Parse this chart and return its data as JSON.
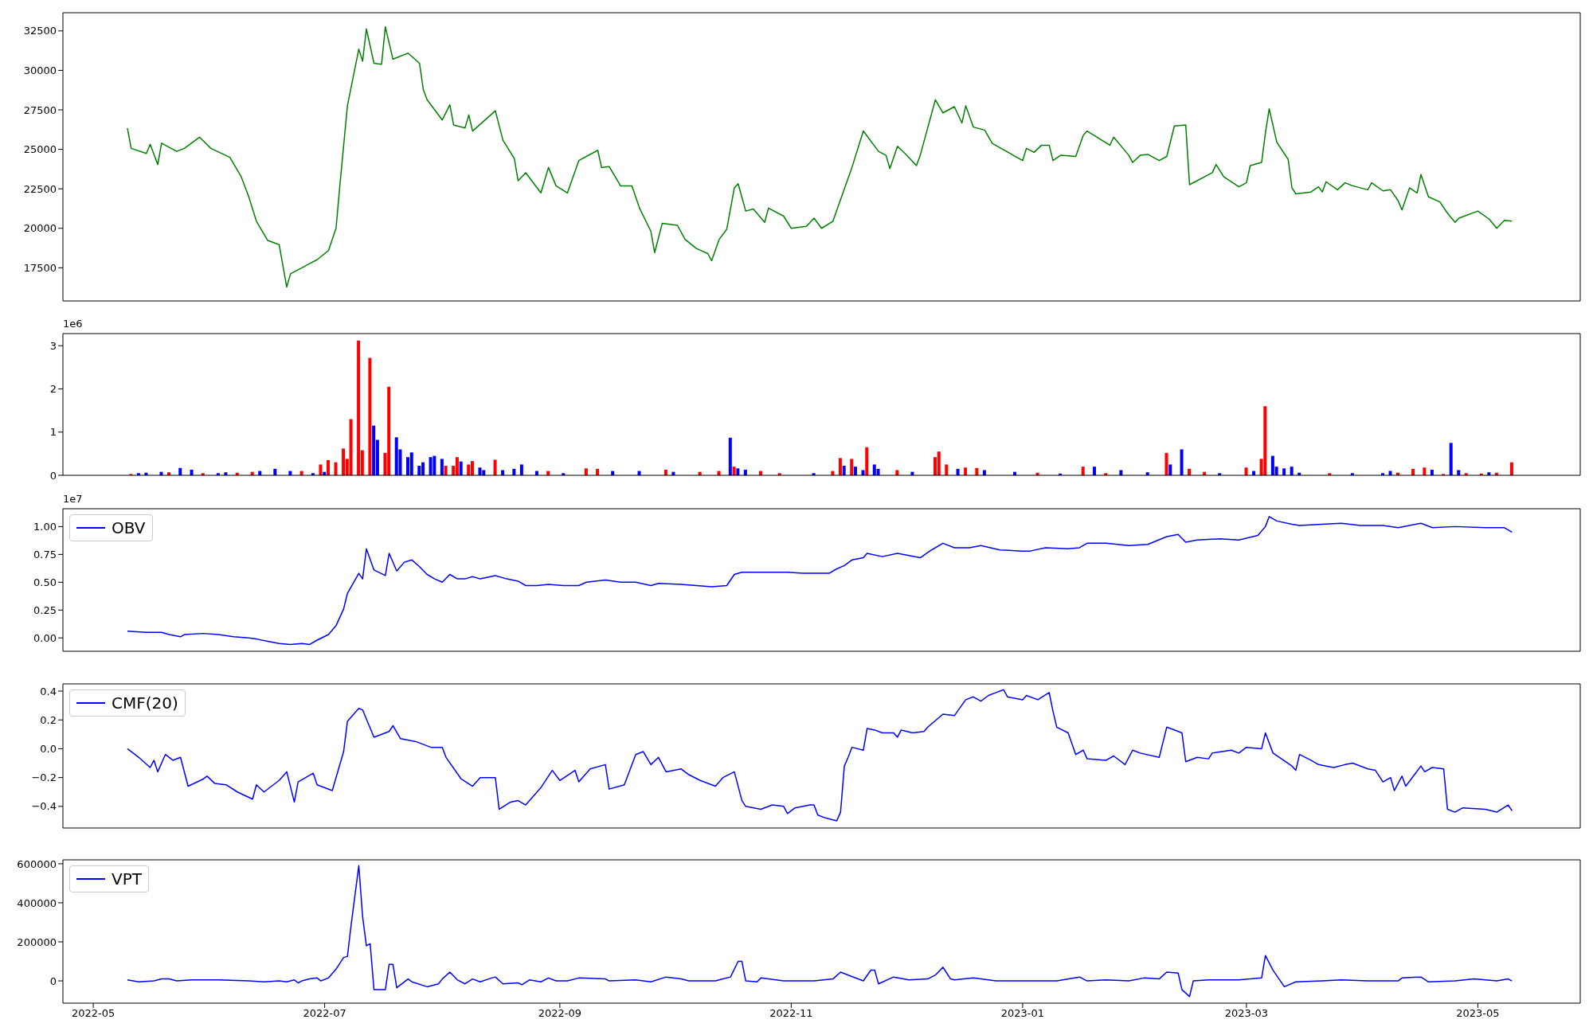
{
  "chart_data": [
    {
      "type": "line",
      "color": "#008000",
      "xlim": [
        "2022-04-23",
        "2023-05-28"
      ],
      "ylim": [
        15400,
        33650
      ],
      "yticks": [
        17500,
        20000,
        22500,
        25000,
        27500,
        30000,
        32500
      ],
      "tick_labels": "y",
      "x": [
        "2022-05-10",
        "2022-05-11",
        "2022-05-15",
        "2022-05-16",
        "2022-05-18",
        "2022-05-19",
        "2022-05-23",
        "2022-05-25",
        "2022-05-29",
        "2022-06-01",
        "2022-06-06",
        "2022-06-09",
        "2022-06-11",
        "2022-06-13",
        "2022-06-16",
        "2022-06-19",
        "2022-06-21",
        "2022-06-22",
        "2022-06-25",
        "2022-06-27",
        "2022-06-29",
        "2022-07-02",
        "2022-07-04",
        "2022-07-05",
        "2022-07-07",
        "2022-07-10",
        "2022-07-11",
        "2022-07-12",
        "2022-07-14",
        "2022-07-16",
        "2022-07-17",
        "2022-07-19",
        "2022-07-23",
        "2022-07-26",
        "2022-07-27",
        "2022-07-28",
        "2022-08-01",
        "2022-08-03",
        "2022-08-04",
        "2022-08-07",
        "2022-08-08",
        "2022-08-09",
        "2022-08-15",
        "2022-08-17",
        "2022-08-20",
        "2022-08-21",
        "2022-08-23",
        "2022-08-27",
        "2022-08-29",
        "2022-08-31",
        "2022-09-03",
        "2022-09-06",
        "2022-09-11",
        "2022-09-12",
        "2022-09-14",
        "2022-09-17",
        "2022-09-20",
        "2022-09-22",
        "2022-09-25",
        "2022-09-26",
        "2022-09-28",
        "2022-10-02",
        "2022-10-04",
        "2022-10-07",
        "2022-10-10",
        "2022-10-11",
        "2022-10-13",
        "2022-10-15",
        "2022-10-17",
        "2022-10-18",
        "2022-10-20",
        "2022-10-22",
        "2022-10-25",
        "2022-10-26",
        "2022-10-30",
        "2022-11-01",
        "2022-11-05",
        "2022-11-07",
        "2022-11-09",
        "2022-11-12",
        "2022-11-15",
        "2022-11-17",
        "2022-11-20",
        "2022-11-24",
        "2022-11-26",
        "2022-11-27",
        "2022-11-29",
        "2022-12-01",
        "2022-12-04",
        "2022-12-05",
        "2022-12-09",
        "2022-12-11",
        "2022-12-14",
        "2022-12-16",
        "2022-12-17",
        "2022-12-19",
        "2022-12-22",
        "2022-12-24",
        "2023-01-01",
        "2023-01-02",
        "2023-01-04",
        "2023-01-06",
        "2023-01-08",
        "2023-01-09",
        "2023-01-11",
        "2023-01-15",
        "2023-01-17",
        "2023-01-18",
        "2023-01-24",
        "2023-01-25",
        "2023-01-29",
        "2023-01-30",
        "2023-02-01",
        "2023-02-03",
        "2023-02-06",
        "2023-02-08",
        "2023-02-10",
        "2023-02-13",
        "2023-02-14",
        "2023-02-20",
        "2023-02-21",
        "2023-02-23",
        "2023-02-27",
        "2023-03-01",
        "2023-03-02",
        "2023-03-05",
        "2023-03-06",
        "2023-03-07",
        "2023-03-09",
        "2023-03-12",
        "2023-03-13",
        "2023-03-14",
        "2023-03-18",
        "2023-03-20",
        "2023-03-21",
        "2023-03-22",
        "2023-03-25",
        "2023-03-27",
        "2023-03-29",
        "2023-04-02",
        "2023-04-03",
        "2023-04-06",
        "2023-04-08",
        "2023-04-10",
        "2023-04-11",
        "2023-04-13",
        "2023-04-15",
        "2023-04-16",
        "2023-04-18",
        "2023-04-21",
        "2023-04-23",
        "2023-04-25",
        "2023-04-26",
        "2023-05-01",
        "2023-05-04",
        "2023-05-06",
        "2023-05-08",
        "2023-05-10"
      ],
      "values": [
        26350,
        25060,
        24740,
        25320,
        24040,
        25390,
        24870,
        25060,
        25770,
        25060,
        24490,
        23270,
        21990,
        20450,
        19230,
        18970,
        16280,
        17120,
        17500,
        17760,
        18010,
        18590,
        20000,
        22690,
        27760,
        31350,
        30580,
        32630,
        30450,
        30390,
        32760,
        30710,
        31090,
        30450,
        28780,
        28140,
        26860,
        27820,
        26540,
        26350,
        27180,
        26160,
        27440,
        25580,
        24420,
        23010,
        23520,
        22240,
        23850,
        22690,
        22240,
        24290,
        24940,
        23850,
        23910,
        22690,
        22690,
        21280,
        19810,
        18460,
        20320,
        20190,
        19300,
        18720,
        18400,
        17950,
        19300,
        19940,
        22560,
        22820,
        21090,
        21220,
        20380,
        21280,
        20770,
        20000,
        20130,
        20640,
        20000,
        20450,
        22500,
        23850,
        26160,
        24870,
        24620,
        23780,
        25190,
        24740,
        23970,
        24620,
        28140,
        27310,
        27700,
        26670,
        27760,
        26410,
        26220,
        25380,
        24290,
        25060,
        24810,
        25260,
        25260,
        24290,
        24620,
        24550,
        25900,
        26160,
        25260,
        25770,
        24620,
        24170,
        24620,
        24680,
        24290,
        24550,
        26480,
        26540,
        22760,
        23520,
        24040,
        23270,
        22630,
        22880,
        23970,
        24170,
        26030,
        27570,
        25450,
        24360,
        22560,
        22180,
        22300,
        22630,
        22300,
        22950,
        22440,
        22880,
        22690,
        22440,
        22880,
        22370,
        22440,
        21740,
        21160,
        22560,
        22240,
        23400,
        21990,
        21670,
        20960,
        20380,
        20640,
        21090,
        20580,
        20000,
        20510,
        20450
      ]
    },
    {
      "type": "bar",
      "xlim": [
        "2022-04-23",
        "2023-05-28"
      ],
      "ylim": [
        0,
        3.28
      ],
      "yticks": [
        0,
        1,
        2,
        3
      ],
      "tick_labels": "y",
      "annotations": [
        "1e6"
      ],
      "x": [
        "2022-05-11",
        "2022-05-13",
        "2022-05-15",
        "2022-05-19",
        "2022-05-21",
        "2022-05-24",
        "2022-05-27",
        "2022-05-30",
        "2022-06-03",
        "2022-06-05",
        "2022-06-08",
        "2022-06-12",
        "2022-06-14",
        "2022-06-18",
        "2022-06-22",
        "2022-06-25",
        "2022-06-28",
        "2022-06-30",
        "2022-07-01",
        "2022-07-02",
        "2022-07-04",
        "2022-07-06",
        "2022-07-07",
        "2022-07-08",
        "2022-07-10",
        "2022-07-11",
        "2022-07-13",
        "2022-07-14",
        "2022-07-15",
        "2022-07-17",
        "2022-07-18",
        "2022-07-20",
        "2022-07-21",
        "2022-07-23",
        "2022-07-24",
        "2022-07-26",
        "2022-07-27",
        "2022-07-29",
        "2022-07-30",
        "2022-08-01",
        "2022-08-02",
        "2022-08-04",
        "2022-08-05",
        "2022-08-06",
        "2022-08-08",
        "2022-08-09",
        "2022-08-11",
        "2022-08-12",
        "2022-08-15",
        "2022-08-17",
        "2022-08-20",
        "2022-08-22",
        "2022-08-26",
        "2022-08-29",
        "2022-09-02",
        "2022-09-08",
        "2022-09-11",
        "2022-09-15",
        "2022-09-22",
        "2022-09-29",
        "2022-10-01",
        "2022-10-08",
        "2022-10-13",
        "2022-10-16",
        "2022-10-17",
        "2022-10-18",
        "2022-10-20",
        "2022-10-24",
        "2022-10-29",
        "2022-11-07",
        "2022-11-12",
        "2022-11-14",
        "2022-11-15",
        "2022-11-17",
        "2022-11-18",
        "2022-11-20",
        "2022-11-21",
        "2022-11-23",
        "2022-11-24",
        "2022-11-29",
        "2022-12-03",
        "2022-12-09",
        "2022-12-10",
        "2022-12-12",
        "2022-12-15",
        "2022-12-17",
        "2022-12-20",
        "2022-12-22",
        "2022-12-30",
        "2023-01-05",
        "2023-01-11",
        "2023-01-17",
        "2023-01-20",
        "2023-01-23",
        "2023-01-27",
        "2023-02-03",
        "2023-02-08",
        "2023-02-09",
        "2023-02-12",
        "2023-02-14",
        "2023-02-18",
        "2023-02-22",
        "2023-03-01",
        "2023-03-03",
        "2023-03-05",
        "2023-03-06",
        "2023-03-08",
        "2023-03-09",
        "2023-03-11",
        "2023-03-13",
        "2023-03-15",
        "2023-03-23",
        "2023-03-29",
        "2023-04-06",
        "2023-04-08",
        "2023-04-10",
        "2023-04-14",
        "2023-04-17",
        "2023-04-19",
        "2023-04-22",
        "2023-04-24",
        "2023-04-26",
        "2023-04-28",
        "2023-05-02",
        "2023-05-04",
        "2023-05-06",
        "2023-05-10"
      ],
      "values": [
        0.03,
        0.05,
        0.06,
        0.08,
        0.07,
        0.17,
        0.13,
        0.05,
        0.05,
        0.07,
        0.06,
        0.08,
        0.1,
        0.15,
        0.1,
        0.1,
        0.05,
        0.25,
        0.08,
        0.35,
        0.3,
        0.62,
        0.38,
        1.3,
        3.12,
        0.58,
        2.72,
        1.15,
        0.82,
        0.52,
        2.05,
        0.88,
        0.6,
        0.42,
        0.53,
        0.22,
        0.3,
        0.42,
        0.45,
        0.38,
        0.22,
        0.22,
        0.42,
        0.32,
        0.25,
        0.33,
        0.18,
        0.12,
        0.36,
        0.12,
        0.15,
        0.25,
        0.1,
        0.1,
        0.05,
        0.16,
        0.15,
        0.1,
        0.1,
        0.13,
        0.08,
        0.08,
        0.1,
        0.87,
        0.2,
        0.16,
        0.13,
        0.1,
        0.05,
        0.05,
        0.1,
        0.4,
        0.22,
        0.38,
        0.2,
        0.12,
        0.65,
        0.25,
        0.15,
        0.12,
        0.08,
        0.42,
        0.55,
        0.25,
        0.15,
        0.18,
        0.17,
        0.12,
        0.08,
        0.06,
        0.04,
        0.2,
        0.2,
        0.05,
        0.12,
        0.07,
        0.52,
        0.25,
        0.6,
        0.15,
        0.08,
        0.05,
        0.18,
        0.1,
        0.38,
        1.6,
        0.45,
        0.2,
        0.16,
        0.2,
        0.06,
        0.05,
        0.05,
        0.05,
        0.1,
        0.06,
        0.15,
        0.18,
        0.13,
        0.03,
        0.75,
        0.12,
        0.05,
        0.04,
        0.07,
        0.06,
        0.3
      ],
      "colors": [
        "#ff0000",
        "#0000ff",
        "#0000ff",
        "#0000ff",
        "#ff0000",
        "#0000ff",
        "#0000ff",
        "#ff0000",
        "#0000ff",
        "#0000ff",
        "#ff0000",
        "#ff0000",
        "#0000ff",
        "#0000ff",
        "#0000ff",
        "#ff0000",
        "#0000ff",
        "#ff0000",
        "#0000ff",
        "#ff0000",
        "#ff0000",
        "#ff0000",
        "#ff0000",
        "#ff0000",
        "#ff0000",
        "#ff0000",
        "#ff0000",
        "#0000ff",
        "#0000ff",
        "#ff0000",
        "#ff0000",
        "#0000ff",
        "#0000ff",
        "#0000ff",
        "#0000ff",
        "#0000ff",
        "#0000ff",
        "#0000ff",
        "#0000ff",
        "#0000ff",
        "#ff0000",
        "#ff0000",
        "#ff0000",
        "#0000ff",
        "#ff0000",
        "#ff0000",
        "#0000ff",
        "#0000ff",
        "#ff0000",
        "#0000ff",
        "#0000ff",
        "#0000ff",
        "#0000ff",
        "#ff0000",
        "#0000ff",
        "#ff0000",
        "#ff0000",
        "#0000ff",
        "#0000ff",
        "#ff0000",
        "#0000ff",
        "#ff0000",
        "#ff0000",
        "#0000ff",
        "#ff0000",
        "#0000ff",
        "#0000ff",
        "#ff0000",
        "#ff0000",
        "#0000ff",
        "#ff0000",
        "#ff0000",
        "#0000ff",
        "#ff0000",
        "#0000ff",
        "#0000ff",
        "#ff0000",
        "#0000ff",
        "#0000ff",
        "#ff0000",
        "#0000ff",
        "#ff0000",
        "#ff0000",
        "#ff0000",
        "#0000ff",
        "#ff0000",
        "#ff0000",
        "#0000ff",
        "#0000ff",
        "#ff0000",
        "#0000ff",
        "#ff0000",
        "#0000ff",
        "#ff0000",
        "#0000ff",
        "#0000ff",
        "#ff0000",
        "#0000ff",
        "#0000ff",
        "#ff0000",
        "#ff0000",
        "#0000ff",
        "#ff0000",
        "#0000ff",
        "#ff0000",
        "#ff0000",
        "#0000ff",
        "#0000ff",
        "#0000ff",
        "#0000ff",
        "#0000ff",
        "#ff0000",
        "#0000ff",
        "#0000ff",
        "#0000ff",
        "#ff0000",
        "#ff0000",
        "#ff0000",
        "#0000ff",
        "#ff0000",
        "#0000ff",
        "#0000ff",
        "#ff0000",
        "#ff0000",
        "#0000ff",
        "#ff0000",
        "#ff0000"
      ]
    },
    {
      "type": "line",
      "xlim": [
        "2022-04-23",
        "2023-05-28"
      ],
      "ylim": [
        -0.12,
        1.16
      ],
      "yticks": [
        {
          "value": 0,
          "label": "0.00"
        },
        {
          "value": 0.25,
          "label": "0.25"
        },
        {
          "value": 0.5,
          "label": "0.50"
        },
        {
          "value": 0.75,
          "label": "0.75"
        },
        {
          "value": 1,
          "label": "1.00"
        }
      ],
      "tick_labels": "y",
      "legend": "top left",
      "annotations": [
        "1e7"
      ],
      "x": [
        "2022-05-10",
        "2022-05-15",
        "2022-05-19",
        "2022-05-21",
        "2022-05-24",
        "2022-05-25",
        "2022-05-30",
        "2022-06-03",
        "2022-06-07",
        "2022-06-11",
        "2022-06-13",
        "2022-06-16",
        "2022-06-19",
        "2022-06-22",
        "2022-06-25",
        "2022-06-27",
        "2022-06-29",
        "2022-07-02",
        "2022-07-04",
        "2022-07-06",
        "2022-07-07",
        "2022-07-10",
        "2022-07-11",
        "2022-07-12",
        "2022-07-14",
        "2022-07-17",
        "2022-07-18",
        "2022-07-20",
        "2022-07-22",
        "2022-07-24",
        "2022-07-26",
        "2022-07-28",
        "2022-07-30",
        "2022-08-01",
        "2022-08-03",
        "2022-08-05",
        "2022-08-07",
        "2022-08-09",
        "2022-08-11",
        "2022-08-15",
        "2022-08-18",
        "2022-08-21",
        "2022-08-23",
        "2022-08-26",
        "2022-08-29",
        "2022-09-02",
        "2022-09-06",
        "2022-09-08",
        "2022-09-13",
        "2022-09-17",
        "2022-09-21",
        "2022-09-25",
        "2022-09-27",
        "2022-10-03",
        "2022-10-07",
        "2022-10-11",
        "2022-10-15",
        "2022-10-17",
        "2022-10-19",
        "2022-10-23",
        "2022-10-27",
        "2022-10-31",
        "2022-11-04",
        "2022-11-11",
        "2022-11-13",
        "2022-11-15",
        "2022-11-17",
        "2022-11-20",
        "2022-11-21",
        "2022-11-25",
        "2022-11-29",
        "2022-12-05",
        "2022-12-08",
        "2022-12-11",
        "2022-12-14",
        "2022-12-18",
        "2022-12-21",
        "2022-12-26",
        "2023-01-01",
        "2023-01-03",
        "2023-01-07",
        "2023-01-13",
        "2023-01-16",
        "2023-01-18",
        "2023-01-23",
        "2023-01-29",
        "2023-02-03",
        "2023-02-08",
        "2023-02-11",
        "2023-02-13",
        "2023-02-16",
        "2023-02-22",
        "2023-02-27",
        "2023-03-04",
        "2023-03-06",
        "2023-03-07",
        "2023-03-09",
        "2023-03-13",
        "2023-03-15",
        "2023-03-21",
        "2023-03-26",
        "2023-03-31",
        "2023-04-06",
        "2023-04-10",
        "2023-04-16",
        "2023-04-19",
        "2023-04-25",
        "2023-05-03",
        "2023-05-08",
        "2023-05-10"
      ],
      "series": [
        {
          "name": "OBV",
          "color": "#0000ff",
          "values": [
            0.06,
            0.05,
            0.05,
            0.03,
            0.01,
            0.03,
            0.04,
            0.03,
            0.01,
            0,
            -0.01,
            -0.03,
            -0.05,
            -0.06,
            -0.05,
            -0.06,
            -0.02,
            0.03,
            0.11,
            0.26,
            0.4,
            0.58,
            0.53,
            0.8,
            0.61,
            0.56,
            0.76,
            0.6,
            0.68,
            0.7,
            0.64,
            0.57,
            0.53,
            0.5,
            0.57,
            0.53,
            0.53,
            0.55,
            0.53,
            0.56,
            0.53,
            0.51,
            0.47,
            0.47,
            0.48,
            0.47,
            0.47,
            0.5,
            0.52,
            0.5,
            0.5,
            0.47,
            0.49,
            0.48,
            0.47,
            0.46,
            0.47,
            0.57,
            0.59,
            0.59,
            0.59,
            0.59,
            0.58,
            0.58,
            0.62,
            0.65,
            0.7,
            0.72,
            0.76,
            0.73,
            0.76,
            0.72,
            0.79,
            0.85,
            0.81,
            0.81,
            0.83,
            0.79,
            0.78,
            0.78,
            0.81,
            0.8,
            0.81,
            0.85,
            0.85,
            0.83,
            0.84,
            0.91,
            0.93,
            0.86,
            0.88,
            0.89,
            0.88,
            0.92,
            1.0,
            1.09,
            1.05,
            1.02,
            1.01,
            1.02,
            1.03,
            1.01,
            1.01,
            0.99,
            1.03,
            0.99,
            1.0,
            0.99,
            0.99,
            0.95
          ]
        }
      ]
    },
    {
      "type": "line",
      "xlim": [
        "2022-04-23",
        "2023-05-28"
      ],
      "ylim": [
        -0.55,
        0.45
      ],
      "yticks": [
        {
          "value": -0.4,
          "label": "−0.4"
        },
        {
          "value": -0.2,
          "label": "−0.2"
        },
        {
          "value": 0,
          "label": "0.0"
        },
        0.2,
        0.4
      ],
      "tick_labels": "y",
      "legend": "top left",
      "x": [
        "2022-05-10",
        "2022-05-12",
        "2022-05-13",
        "2022-05-16",
        "2022-05-17",
        "2022-05-18",
        "2022-05-20",
        "2022-05-22",
        "2022-05-24",
        "2022-05-26",
        "2022-05-30",
        "2022-05-31",
        "2022-06-02",
        "2022-06-05",
        "2022-06-08",
        "2022-06-12",
        "2022-06-13",
        "2022-06-15",
        "2022-06-19",
        "2022-06-21",
        "2022-06-23",
        "2022-06-24",
        "2022-06-28",
        "2022-06-29",
        "2022-07-03",
        "2022-07-06",
        "2022-07-07",
        "2022-07-10",
        "2022-07-11",
        "2022-07-14",
        "2022-07-18",
        "2022-07-19",
        "2022-07-21",
        "2022-07-25",
        "2022-07-29",
        "2022-08-01",
        "2022-08-02",
        "2022-08-06",
        "2022-08-09",
        "2022-08-11",
        "2022-08-15",
        "2022-08-16",
        "2022-08-19",
        "2022-08-21",
        "2022-08-23",
        "2022-08-27",
        "2022-08-30",
        "2022-09-01",
        "2022-09-05",
        "2022-09-06",
        "2022-09-09",
        "2022-09-13",
        "2022-09-14",
        "2022-09-18",
        "2022-09-21",
        "2022-09-23",
        "2022-09-25",
        "2022-09-27",
        "2022-09-29",
        "2022-10-03",
        "2022-10-05",
        "2022-10-08",
        "2022-10-12",
        "2022-10-14",
        "2022-10-17",
        "2022-10-19",
        "2022-10-20",
        "2022-10-24",
        "2022-10-27",
        "2022-10-30",
        "2022-10-31",
        "2022-11-02",
        "2022-11-06",
        "2022-11-07",
        "2022-11-08",
        "2022-11-10",
        "2022-11-13",
        "2022-11-14",
        "2022-11-15",
        "2022-11-16",
        "2022-11-17",
        "2022-11-20",
        "2022-11-21",
        "2022-11-23",
        "2022-11-25",
        "2022-11-28",
        "2022-11-29",
        "2022-11-30",
        "2022-12-03",
        "2022-12-06",
        "2022-12-07",
        "2022-12-11",
        "2022-12-14",
        "2022-12-17",
        "2022-12-19",
        "2022-12-21",
        "2022-12-23",
        "2022-12-25",
        "2022-12-27",
        "2022-12-28",
        "2023-01-01",
        "2023-01-02",
        "2023-01-05",
        "2023-01-08",
        "2023-01-09",
        "2023-01-10",
        "2023-01-13",
        "2023-01-15",
        "2023-01-17",
        "2023-01-18",
        "2023-01-23",
        "2023-01-25",
        "2023-01-28",
        "2023-01-30",
        "2023-02-01",
        "2023-02-06",
        "2023-02-08",
        "2023-02-12",
        "2023-02-13",
        "2023-02-16",
        "2023-02-19",
        "2023-02-20",
        "2023-02-25",
        "2023-02-27",
        "2023-03-01",
        "2023-03-05",
        "2023-03-06",
        "2023-03-08",
        "2023-03-13",
        "2023-03-14",
        "2023-03-15",
        "2023-03-18",
        "2023-03-20",
        "2023-03-22",
        "2023-03-24",
        "2023-03-27",
        "2023-03-29",
        "2023-04-02",
        "2023-04-04",
        "2023-04-06",
        "2023-04-08",
        "2023-04-09",
        "2023-04-11",
        "2023-04-12",
        "2023-04-16",
        "2023-04-17",
        "2023-04-19",
        "2023-04-22",
        "2023-04-23",
        "2023-04-25",
        "2023-04-27",
        "2023-05-03",
        "2023-05-06",
        "2023-05-09",
        "2023-05-10"
      ],
      "series": [
        {
          "name": "CMF(20)",
          "color": "#0000ff",
          "values": [
            0.0,
            -0.04,
            -0.06,
            -0.13,
            -0.08,
            -0.16,
            -0.04,
            -0.08,
            -0.06,
            -0.26,
            -0.21,
            -0.19,
            -0.24,
            -0.25,
            -0.3,
            -0.35,
            -0.25,
            -0.3,
            -0.22,
            -0.16,
            -0.37,
            -0.23,
            -0.17,
            -0.25,
            -0.29,
            -0.02,
            0.19,
            0.28,
            0.27,
            0.08,
            0.12,
            0.16,
            0.07,
            0.05,
            0.01,
            0.01,
            -0.06,
            -0.21,
            -0.26,
            -0.2,
            -0.2,
            -0.42,
            -0.37,
            -0.36,
            -0.39,
            -0.27,
            -0.15,
            -0.22,
            -0.15,
            -0.23,
            -0.14,
            -0.11,
            -0.28,
            -0.25,
            -0.04,
            -0.02,
            -0.11,
            -0.06,
            -0.16,
            -0.14,
            -0.18,
            -0.22,
            -0.26,
            -0.2,
            -0.16,
            -0.36,
            -0.4,
            -0.42,
            -0.39,
            -0.4,
            -0.45,
            -0.41,
            -0.39,
            -0.39,
            -0.46,
            -0.48,
            -0.5,
            -0.44,
            -0.12,
            -0.06,
            0.01,
            -0.01,
            0.14,
            0.13,
            0.11,
            0.11,
            0.08,
            0.13,
            0.11,
            0.12,
            0.15,
            0.24,
            0.23,
            0.34,
            0.36,
            0.33,
            0.37,
            0.39,
            0.41,
            0.36,
            0.34,
            0.37,
            0.34,
            0.39,
            0.26,
            0.15,
            0.11,
            -0.04,
            -0.01,
            -0.07,
            -0.08,
            -0.05,
            -0.11,
            -0.01,
            -0.03,
            -0.06,
            0.15,
            0.11,
            -0.09,
            -0.06,
            -0.07,
            -0.03,
            -0.01,
            -0.03,
            0.01,
            0.0,
            0.11,
            -0.03,
            -0.12,
            -0.15,
            -0.04,
            -0.08,
            -0.11,
            -0.12,
            -0.13,
            -0.11,
            -0.1,
            -0.14,
            -0.15,
            -0.23,
            -0.2,
            -0.29,
            -0.19,
            -0.26,
            -0.12,
            -0.16,
            -0.13,
            -0.14,
            -0.42,
            -0.44,
            -0.41,
            -0.42,
            -0.44,
            -0.39,
            -0.43
          ]
        }
      ]
    },
    {
      "type": "line",
      "xlim": [
        "2022-04-23",
        "2023-05-28"
      ],
      "ylim": [
        -114000,
        620000
      ],
      "yticks": [
        0,
        200000,
        400000,
        600000
      ],
      "xticks": [
        "2022-05",
        "2022-07",
        "2022-09",
        "2022-11",
        "2023-01",
        "2023-03",
        "2023-05"
      ],
      "legend": "top left",
      "x": [
        "2022-05-10",
        "2022-05-13",
        "2022-05-17",
        "2022-05-19",
        "2022-05-21",
        "2022-05-23",
        "2022-05-27",
        "2022-06-03",
        "2022-06-11",
        "2022-06-15",
        "2022-06-19",
        "2022-06-21",
        "2022-06-23",
        "2022-06-24",
        "2022-06-25",
        "2022-06-27",
        "2022-06-29",
        "2022-06-30",
        "2022-07-02",
        "2022-07-04",
        "2022-07-06",
        "2022-07-07",
        "2022-07-08",
        "2022-07-10",
        "2022-07-11",
        "2022-07-12",
        "2022-07-13",
        "2022-07-14",
        "2022-07-17",
        "2022-07-18",
        "2022-07-19",
        "2022-07-20",
        "2022-07-23",
        "2022-07-24",
        "2022-07-28",
        "2022-07-31",
        "2022-08-01",
        "2022-08-03",
        "2022-08-05",
        "2022-08-07",
        "2022-08-09",
        "2022-08-11",
        "2022-08-14",
        "2022-08-15",
        "2022-08-17",
        "2022-08-21",
        "2022-08-22",
        "2022-08-24",
        "2022-08-27",
        "2022-08-29",
        "2022-08-31",
        "2022-09-03",
        "2022-09-06",
        "2022-09-13",
        "2022-09-14",
        "2022-09-21",
        "2022-09-25",
        "2022-09-29",
        "2022-10-03",
        "2022-10-05",
        "2022-10-12",
        "2022-10-14",
        "2022-10-16",
        "2022-10-18",
        "2022-10-19",
        "2022-10-20",
        "2022-10-23",
        "2022-10-24",
        "2022-10-30",
        "2022-11-07",
        "2022-11-12",
        "2022-11-14",
        "2022-11-16",
        "2022-11-20",
        "2022-11-22",
        "2022-11-23",
        "2022-11-24",
        "2022-11-28",
        "2022-12-02",
        "2022-12-07",
        "2022-12-09",
        "2022-12-11",
        "2022-12-12",
        "2022-12-13",
        "2022-12-14",
        "2022-12-19",
        "2022-12-25",
        "2023-01-02",
        "2023-01-10",
        "2023-01-16",
        "2023-01-18",
        "2023-01-23",
        "2023-01-29",
        "2023-02-02",
        "2023-02-06",
        "2023-02-08",
        "2023-02-11",
        "2023-02-12",
        "2023-02-14",
        "2023-02-15",
        "2023-02-19",
        "2023-02-27",
        "2023-03-05",
        "2023-03-06",
        "2023-03-08",
        "2023-03-11",
        "2023-03-14",
        "2023-03-21",
        "2023-03-26",
        "2023-04-02",
        "2023-04-10",
        "2023-04-11",
        "2023-04-16",
        "2023-04-18",
        "2023-04-25",
        "2023-04-30",
        "2023-05-06",
        "2023-05-09",
        "2023-05-10"
      ],
      "series": [
        {
          "name": "VPT",
          "color": "#0000ff",
          "values": [
            5000,
            -5000,
            0,
            10000,
            10000,
            0,
            5000,
            5000,
            0,
            -5000,
            0,
            -5000,
            5000,
            -10000,
            0,
            10000,
            15000,
            0,
            15000,
            60000,
            120000,
            125000,
            290000,
            590000,
            330000,
            180000,
            190000,
            -45000,
            -45000,
            85000,
            85000,
            -35000,
            10000,
            -5000,
            -30000,
            -15000,
            10000,
            45000,
            5000,
            -15000,
            10000,
            -5000,
            15000,
            20000,
            -15000,
            -10000,
            -20000,
            5000,
            -5000,
            15000,
            0,
            0,
            15000,
            10000,
            0,
            5000,
            -5000,
            20000,
            10000,
            0,
            0,
            10000,
            20000,
            100000,
            100000,
            0,
            -5000,
            15000,
            0,
            0,
            10000,
            45000,
            30000,
            0,
            55000,
            55000,
            -15000,
            20000,
            5000,
            10000,
            30000,
            70000,
            40000,
            10000,
            5000,
            15000,
            0,
            0,
            0,
            20000,
            0,
            5000,
            0,
            15000,
            10000,
            45000,
            40000,
            -45000,
            -80000,
            0,
            5000,
            5000,
            15000,
            130000,
            55000,
            -30000,
            -5000,
            0,
            5000,
            0,
            0,
            15000,
            20000,
            -5000,
            0,
            10000,
            0,
            10000,
            0
          ]
        }
      ]
    }
  ]
}
